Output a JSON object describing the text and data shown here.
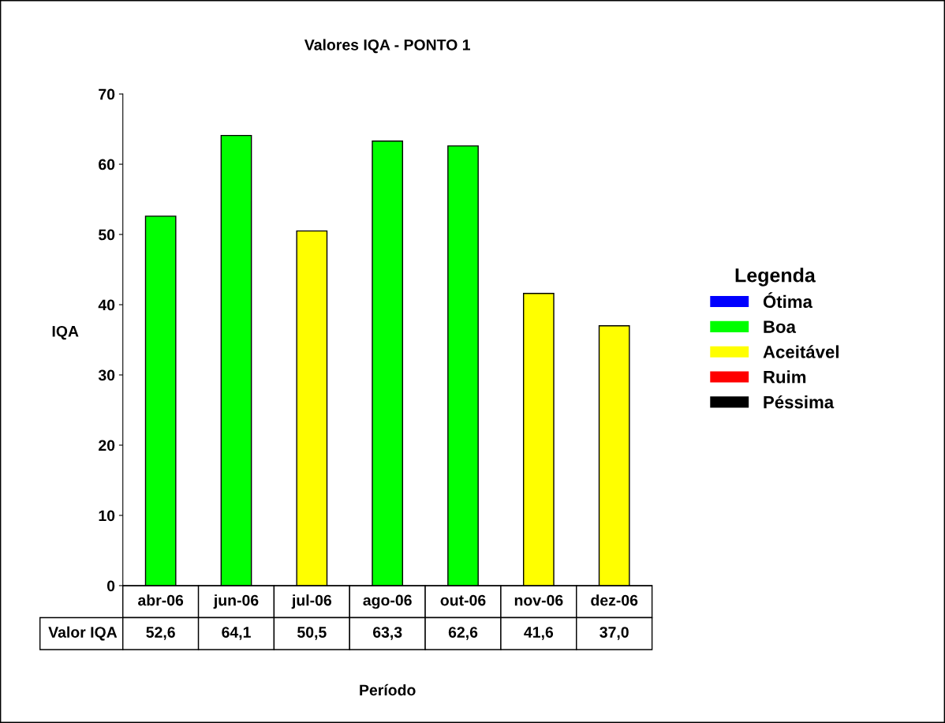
{
  "chart_data": {
    "type": "bar",
    "title": "Valores IQA - PONTO 1",
    "xlabel": "Período",
    "ylabel": "IQA",
    "legend_title": "Legenda",
    "categories": [
      "abr-06",
      "jun-06",
      "jul-06",
      "ago-06",
      "out-06",
      "nov-06",
      "dez-06"
    ],
    "stacked": true,
    "series": [
      {
        "name": "Ótima",
        "color": "#0000ff",
        "values": [
          null,
          null,
          null,
          null,
          null,
          null,
          null
        ],
        "value_labels": [
          null,
          null,
          null,
          null,
          null,
          null,
          null
        ]
      },
      {
        "name": "Boa",
        "color": "#00ff00",
        "values": [
          52.6,
          64.1,
          null,
          63.3,
          62.6,
          null,
          null
        ],
        "value_labels": [
          "52,6",
          "64,1",
          null,
          "63,3",
          "62,6",
          null,
          null
        ]
      },
      {
        "name": "Aceitável",
        "color": "#ffff00",
        "values": [
          null,
          null,
          50.5,
          null,
          null,
          41.6,
          37.0
        ],
        "value_labels": [
          null,
          null,
          "50,5",
          null,
          null,
          "41,6",
          "37,0"
        ]
      },
      {
        "name": "Ruim",
        "color": "#ff0000",
        "values": [
          null,
          null,
          null,
          null,
          null,
          null,
          null
        ],
        "value_labels": [
          null,
          null,
          null,
          null,
          null,
          null,
          null
        ]
      },
      {
        "name": "Péssima",
        "color": "#000000",
        "values": [
          null,
          null,
          null,
          null,
          null,
          null,
          null
        ],
        "value_labels": [
          null,
          null,
          null,
          null,
          null,
          null,
          null
        ]
      }
    ],
    "annotations": [
      "Valor IQA"
    ],
    "ylim": [
      0,
      70
    ],
    "yticks": [
      0,
      10,
      20,
      30,
      40,
      50,
      60,
      70
    ],
    "grid": false,
    "legend": "right",
    "data_labels": true
  }
}
